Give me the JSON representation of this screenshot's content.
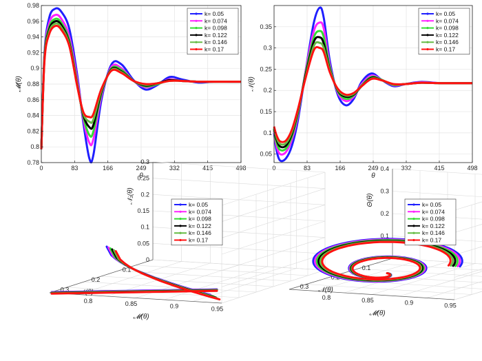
{
  "figure_title": "",
  "chart_data": [
    {
      "id": "top-left",
      "type": "line",
      "title": "",
      "xlabel": "θ",
      "ylabel": "𝓜(θ)",
      "xlim": [
        0,
        498
      ],
      "ylim": [
        0.78,
        0.98
      ],
      "xticks": [
        0,
        83,
        166,
        249,
        332,
        415,
        498
      ],
      "yticks": [
        0.78,
        0.8,
        0.82,
        0.84,
        0.86,
        0.88,
        0.9,
        0.92,
        0.94,
        0.96,
        0.98
      ],
      "ytick_labels": [
        "0.78",
        "0.8",
        "0.82",
        "0.84",
        "0.86",
        "0.88",
        "0.9",
        "0.92",
        "0.94",
        "0.96",
        "0.98"
      ],
      "grid": true,
      "legend_position": "top-right",
      "series": [
        {
          "name": "k= 0.05",
          "color": "#1f1fff",
          "marker": "diamond",
          "x": [
            0,
            8,
            20,
            35,
            50,
            70,
            90,
            105,
            120,
            130,
            150,
            175,
            200,
            230,
            260,
            290,
            320,
            350,
            390,
            430,
            470,
            498
          ],
          "y": [
            0.797,
            0.92,
            0.965,
            0.976,
            0.972,
            0.95,
            0.89,
            0.83,
            0.785,
            0.79,
            0.86,
            0.905,
            0.905,
            0.885,
            0.873,
            0.879,
            0.889,
            0.886,
            0.882,
            0.883,
            0.883,
            0.883
          ]
        },
        {
          "name": "k= 0.074",
          "color": "#ff22ff",
          "marker": "none",
          "x": [
            0,
            8,
            20,
            35,
            50,
            70,
            90,
            105,
            120,
            130,
            150,
            175,
            200,
            230,
            260,
            290,
            320,
            350,
            390,
            430,
            470,
            498
          ],
          "y": [
            0.797,
            0.918,
            0.958,
            0.968,
            0.963,
            0.94,
            0.885,
            0.835,
            0.805,
            0.81,
            0.865,
            0.902,
            0.9,
            0.884,
            0.876,
            0.88,
            0.886,
            0.884,
            0.883,
            0.883,
            0.883,
            0.883
          ]
        },
        {
          "name": "k= 0.098",
          "color": "#33dd33",
          "marker": "none",
          "x": [
            0,
            8,
            20,
            35,
            50,
            70,
            90,
            105,
            120,
            130,
            150,
            175,
            200,
            230,
            260,
            290,
            320,
            350,
            390,
            430,
            470,
            498
          ],
          "y": [
            0.797,
            0.916,
            0.953,
            0.963,
            0.958,
            0.935,
            0.88,
            0.838,
            0.815,
            0.82,
            0.868,
            0.9,
            0.898,
            0.884,
            0.877,
            0.88,
            0.885,
            0.884,
            0.883,
            0.883,
            0.883,
            0.883
          ]
        },
        {
          "name": "k= 0.122",
          "color": "#000000",
          "marker": "circle",
          "x": [
            0,
            8,
            20,
            35,
            50,
            70,
            90,
            105,
            120,
            130,
            150,
            175,
            200,
            230,
            260,
            290,
            320,
            350,
            390,
            430,
            470,
            498
          ],
          "y": [
            0.797,
            0.914,
            0.95,
            0.96,
            0.955,
            0.932,
            0.878,
            0.84,
            0.825,
            0.828,
            0.87,
            0.899,
            0.896,
            0.884,
            0.878,
            0.881,
            0.885,
            0.884,
            0.883,
            0.883,
            0.883,
            0.883
          ]
        },
        {
          "name": "k= 0.146",
          "color": "#66bb44",
          "marker": "star",
          "x": [
            0,
            8,
            20,
            35,
            50,
            70,
            90,
            105,
            120,
            130,
            150,
            175,
            200,
            230,
            260,
            290,
            320,
            350,
            390,
            430,
            470,
            498
          ],
          "y": [
            0.797,
            0.912,
            0.947,
            0.957,
            0.952,
            0.93,
            0.877,
            0.842,
            0.832,
            0.835,
            0.872,
            0.898,
            0.895,
            0.884,
            0.879,
            0.881,
            0.884,
            0.884,
            0.883,
            0.883,
            0.883,
            0.883
          ]
        },
        {
          "name": "k= 0.17",
          "color": "#ff1111",
          "marker": "star",
          "x": [
            0,
            8,
            20,
            35,
            50,
            70,
            90,
            105,
            120,
            130,
            150,
            175,
            200,
            230,
            260,
            290,
            320,
            350,
            390,
            430,
            470,
            498
          ],
          "y": [
            0.797,
            0.91,
            0.944,
            0.954,
            0.949,
            0.928,
            0.876,
            0.844,
            0.838,
            0.842,
            0.874,
            0.897,
            0.894,
            0.884,
            0.88,
            0.881,
            0.884,
            0.884,
            0.883,
            0.883,
            0.883,
            0.883
          ]
        }
      ]
    },
    {
      "id": "top-right",
      "type": "line",
      "title": "",
      "xlabel": "θ",
      "ylabel": "𝒩(θ)",
      "xlim": [
        0,
        498
      ],
      "ylim": [
        0.03,
        0.4
      ],
      "xticks": [
        0,
        83,
        166,
        249,
        332,
        415,
        498
      ],
      "yticks": [
        0.05,
        0.1,
        0.15,
        0.2,
        0.25,
        0.3,
        0.35
      ],
      "ytick_labels": [
        "0.05",
        "0.1",
        "0.15",
        "0.2",
        "0.25",
        "0.3",
        "0.35"
      ],
      "grid": true,
      "legend_position": "top-right",
      "series": [
        {
          "name": "k= 0.05",
          "color": "#1f1fff",
          "marker": "diamond",
          "x": [
            0,
            6,
            15,
            30,
            45,
            60,
            80,
            100,
            115,
            125,
            140,
            160,
            180,
            200,
            220,
            245,
            270,
            300,
            330,
            370,
            420,
            470,
            498
          ],
          "y": [
            0.1,
            0.06,
            0.035,
            0.04,
            0.07,
            0.13,
            0.25,
            0.36,
            0.395,
            0.37,
            0.27,
            0.19,
            0.165,
            0.18,
            0.22,
            0.24,
            0.225,
            0.21,
            0.215,
            0.22,
            0.217,
            0.217,
            0.217
          ]
        },
        {
          "name": "k= 0.074",
          "color": "#ff22ff",
          "marker": "none",
          "x": [
            0,
            6,
            15,
            30,
            45,
            60,
            80,
            100,
            115,
            125,
            140,
            160,
            180,
            200,
            220,
            245,
            270,
            300,
            330,
            370,
            420,
            470,
            498
          ],
          "y": [
            0.105,
            0.07,
            0.05,
            0.055,
            0.085,
            0.14,
            0.25,
            0.34,
            0.36,
            0.345,
            0.26,
            0.195,
            0.175,
            0.185,
            0.215,
            0.235,
            0.225,
            0.212,
            0.215,
            0.219,
            0.217,
            0.217,
            0.217
          ]
        },
        {
          "name": "k= 0.098",
          "color": "#33dd33",
          "marker": "none",
          "x": [
            0,
            6,
            15,
            30,
            45,
            60,
            80,
            100,
            115,
            125,
            140,
            160,
            180,
            200,
            220,
            245,
            270,
            300,
            330,
            370,
            420,
            470,
            498
          ],
          "y": [
            0.108,
            0.078,
            0.06,
            0.063,
            0.092,
            0.145,
            0.245,
            0.325,
            0.34,
            0.325,
            0.255,
            0.198,
            0.18,
            0.188,
            0.212,
            0.232,
            0.225,
            0.213,
            0.215,
            0.218,
            0.217,
            0.217,
            0.217
          ]
        },
        {
          "name": "k= 0.122",
          "color": "#000000",
          "marker": "circle",
          "x": [
            0,
            6,
            15,
            30,
            45,
            60,
            80,
            100,
            115,
            125,
            140,
            160,
            180,
            200,
            220,
            245,
            270,
            300,
            330,
            370,
            420,
            470,
            498
          ],
          "y": [
            0.11,
            0.085,
            0.068,
            0.07,
            0.098,
            0.15,
            0.24,
            0.315,
            0.325,
            0.31,
            0.25,
            0.2,
            0.185,
            0.19,
            0.21,
            0.23,
            0.224,
            0.214,
            0.215,
            0.218,
            0.217,
            0.217,
            0.217
          ]
        },
        {
          "name": "k= 0.146",
          "color": "#66bb44",
          "marker": "star",
          "x": [
            0,
            6,
            15,
            30,
            45,
            60,
            80,
            100,
            115,
            125,
            140,
            160,
            180,
            200,
            220,
            245,
            270,
            300,
            330,
            370,
            420,
            470,
            498
          ],
          "y": [
            0.112,
            0.09,
            0.074,
            0.076,
            0.103,
            0.153,
            0.235,
            0.305,
            0.312,
            0.3,
            0.247,
            0.202,
            0.188,
            0.192,
            0.21,
            0.228,
            0.224,
            0.214,
            0.215,
            0.218,
            0.217,
            0.217,
            0.217
          ]
        },
        {
          "name": "k= 0.17",
          "color": "#ff1111",
          "marker": "star",
          "x": [
            0,
            6,
            15,
            30,
            45,
            60,
            80,
            100,
            115,
            125,
            140,
            160,
            180,
            200,
            220,
            245,
            270,
            300,
            330,
            370,
            420,
            470,
            498
          ],
          "y": [
            0.115,
            0.095,
            0.08,
            0.082,
            0.108,
            0.156,
            0.232,
            0.295,
            0.3,
            0.29,
            0.243,
            0.204,
            0.19,
            0.194,
            0.21,
            0.227,
            0.224,
            0.215,
            0.215,
            0.218,
            0.217,
            0.217,
            0.217
          ]
        }
      ]
    },
    {
      "id": "bottom-left",
      "type": "line3d",
      "title": "",
      "xlabel": "𝒩(θ)",
      "ylabel": "𝓜(θ)",
      "zlabel": "𝒩₁(θ)",
      "xticks": [
        "0.3",
        "0.2",
        "0.1"
      ],
      "yticks": [
        "0.8",
        "0.85",
        "0.9",
        "0.95"
      ],
      "zticks": [
        "0",
        "0.05",
        "0.1",
        "0.15",
        "0.2",
        "0.25",
        "0.3"
      ],
      "grid": true,
      "legend_position": "top-right",
      "legend": [
        {
          "name": "k= 0.05",
          "color": "#1f1fff"
        },
        {
          "name": "k= 0.074",
          "color": "#ff22ff"
        },
        {
          "name": "k= 0.098",
          "color": "#33dd33"
        },
        {
          "name": "k= 0.122",
          "color": "#000000"
        },
        {
          "name": "k= 0.146",
          "color": "#66bb44"
        },
        {
          "name": "k= 0.17",
          "color": "#ff1111"
        }
      ]
    },
    {
      "id": "bottom-right",
      "type": "line3d",
      "title": "",
      "xlabel": "𝒩(θ)",
      "ylabel": "𝓜(θ)",
      "zlabel": "Θ(θ)",
      "xticks": [
        "0.3",
        "0.2",
        "0.1"
      ],
      "yticks": [
        "0.8",
        "0.85",
        "0.9",
        "0.95"
      ],
      "zticks": [
        "0.1",
        "0.2",
        "0.3",
        "0.4"
      ],
      "grid": true,
      "legend_position": "top-right",
      "legend": [
        {
          "name": "k= 0.05",
          "color": "#1f1fff"
        },
        {
          "name": "k= 0.074",
          "color": "#ff22ff"
        },
        {
          "name": "k= 0.098",
          "color": "#33dd33"
        },
        {
          "name": "k= 0.122",
          "color": "#000000"
        },
        {
          "name": "k= 0.146",
          "color": "#66bb44"
        },
        {
          "name": "k= 0.17",
          "color": "#ff1111"
        }
      ]
    }
  ]
}
